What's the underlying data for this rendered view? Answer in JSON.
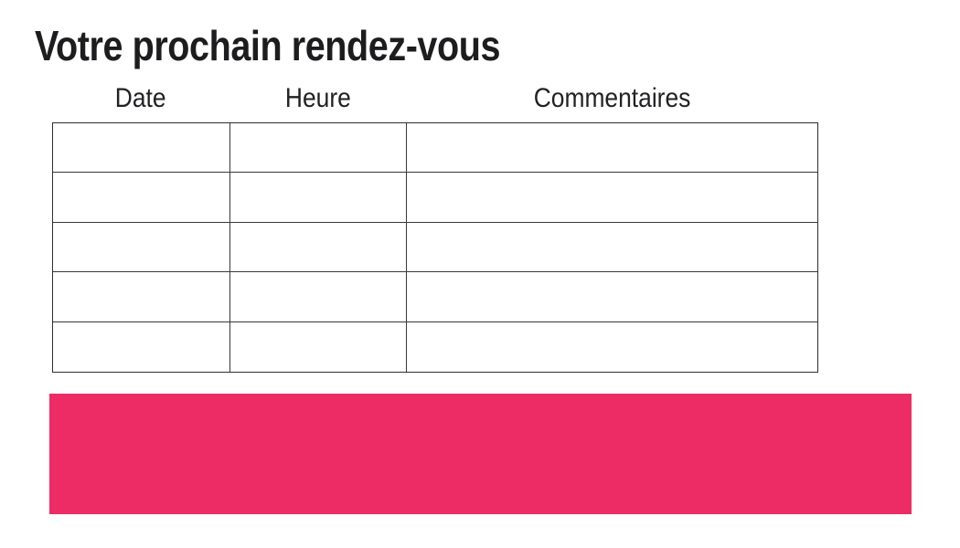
{
  "page": {
    "title": "Votre prochain rendez-vous",
    "background_color": "#ffffff",
    "title_color": "#1d1c1e"
  },
  "table": {
    "headers": [
      "Date",
      "Heure",
      "Commentaires"
    ],
    "rows": [
      [
        "",
        "",
        ""
      ],
      [
        "",
        "",
        ""
      ],
      [
        "",
        "",
        ""
      ],
      [
        "",
        "",
        ""
      ],
      [
        "",
        "",
        ""
      ]
    ],
    "border_color": "#39383a"
  },
  "banner": {
    "color": "#ED2C66"
  }
}
